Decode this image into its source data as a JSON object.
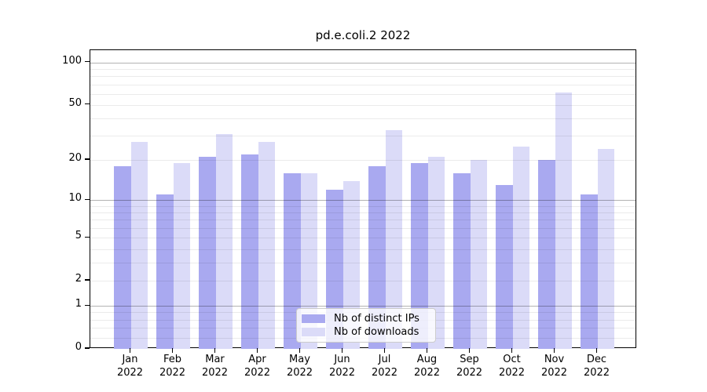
{
  "title": "pd.e.coli.2 2022",
  "colors": {
    "ips_bar": "#a9a9f0",
    "downloads_bar": "#dbdbf8",
    "grid_major": "rgba(0,0,0,0.30)",
    "grid_minor": "rgba(0,0,0,0.08)",
    "axis_line": "#000000",
    "text": "#000000",
    "legend_border": "#cccccc",
    "legend_background": "rgba(255,255,255,0.8)"
  },
  "chart_data": {
    "type": "bar",
    "title": "pd.e.coli.2 2022",
    "categories": [
      "Jan",
      "Feb",
      "Mar",
      "Apr",
      "May",
      "Jun",
      "Jul",
      "Aug",
      "Sep",
      "Oct",
      "Nov",
      "Dec"
    ],
    "xtick_year": "2022",
    "series": [
      {
        "name": "Nb of distinct IPs",
        "color": "#a9a9f0",
        "values": [
          18,
          11,
          21,
          22,
          16,
          12,
          18,
          19,
          16,
          13,
          20,
          11
        ]
      },
      {
        "name": "Nb of downloads",
        "color": "#dbdbf8",
        "values": [
          27,
          19,
          31,
          27,
          16,
          14,
          33,
          21,
          20,
          25,
          61,
          24
        ]
      }
    ],
    "yscale": "log1p",
    "ylim": [
      0,
      122
    ],
    "yticks": [
      0,
      1,
      2,
      5,
      10,
      20,
      50,
      100
    ],
    "ytick_labels": [
      "0",
      "1",
      "2",
      "5",
      "10",
      "20",
      "50",
      "100"
    ],
    "grid": "horizontal major+minor",
    "legend_position": "lower center"
  }
}
